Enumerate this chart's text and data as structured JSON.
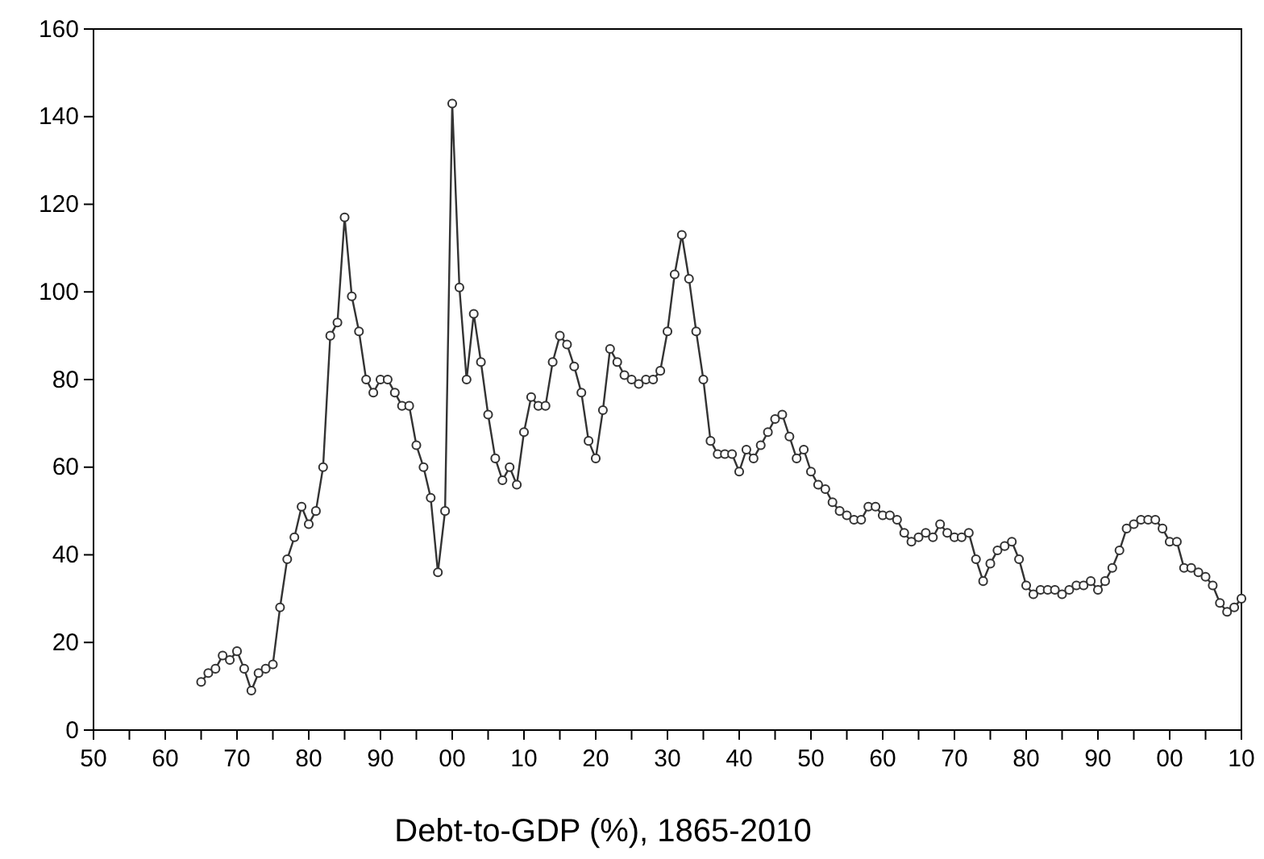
{
  "chart_data": {
    "type": "line",
    "xlabel": "Debt-to-GDP (%), 1865-2010",
    "x": [
      1865,
      1866,
      1867,
      1868,
      1869,
      1870,
      1871,
      1872,
      1873,
      1874,
      1875,
      1876,
      1877,
      1878,
      1879,
      1880,
      1881,
      1882,
      1883,
      1884,
      1885,
      1886,
      1887,
      1888,
      1889,
      1890,
      1891,
      1892,
      1893,
      1894,
      1895,
      1896,
      1897,
      1898,
      1899,
      1900,
      1901,
      1902,
      1903,
      1904,
      1905,
      1906,
      1907,
      1908,
      1909,
      1910,
      1911,
      1912,
      1913,
      1914,
      1915,
      1916,
      1917,
      1918,
      1919,
      1920,
      1921,
      1922,
      1923,
      1924,
      1925,
      1926,
      1927,
      1928,
      1929,
      1930,
      1931,
      1932,
      1933,
      1934,
      1935,
      1936,
      1937,
      1938,
      1939,
      1940,
      1941,
      1942,
      1943,
      1944,
      1945,
      1946,
      1947,
      1948,
      1949,
      1950,
      1951,
      1952,
      1953,
      1954,
      1955,
      1956,
      1957,
      1958,
      1959,
      1960,
      1961,
      1962,
      1963,
      1964,
      1965,
      1966,
      1967,
      1968,
      1969,
      1970,
      1971,
      1972,
      1973,
      1974,
      1975,
      1976,
      1977,
      1978,
      1979,
      1980,
      1981,
      1982,
      1983,
      1984,
      1985,
      1986,
      1987,
      1988,
      1989,
      1990,
      1991,
      1992,
      1993,
      1994,
      1995,
      1996,
      1997,
      1998,
      1999,
      2000,
      2001,
      2002,
      2003,
      2004,
      2005,
      2006,
      2007,
      2008,
      2009,
      2010
    ],
    "series": [
      {
        "color": "#333333",
        "values": [
          11,
          13,
          14,
          17,
          16,
          18,
          14,
          9,
          13,
          14,
          15,
          28,
          39,
          44,
          51,
          47,
          50,
          60,
          90,
          93,
          117,
          99,
          91,
          80,
          77,
          80,
          80,
          77,
          74,
          74,
          65,
          60,
          53,
          36,
          50,
          143,
          101,
          80,
          95,
          84,
          72,
          62,
          57,
          60,
          56,
          68,
          76,
          74,
          74,
          84,
          90,
          88,
          83,
          77,
          66,
          62,
          73,
          87,
          84,
          81,
          80,
          79,
          80,
          80,
          82,
          91,
          104,
          113,
          103,
          91,
          80,
          66,
          63,
          63,
          63,
          59,
          64,
          62,
          65,
          68,
          71,
          72,
          67,
          62,
          64,
          59,
          56,
          55,
          52,
          50,
          49,
          48,
          48,
          51,
          51,
          49,
          49,
          48,
          45,
          43,
          44,
          45,
          44,
          47,
          45,
          44,
          44,
          45,
          39,
          34,
          38,
          41,
          42,
          43,
          39,
          33,
          31,
          32,
          32,
          32,
          31,
          32,
          33,
          33,
          34,
          32,
          34,
          37,
          41,
          46,
          47,
          48,
          48,
          48,
          46,
          43,
          43,
          37,
          37,
          36,
          35,
          33,
          29,
          27,
          28,
          30
        ]
      }
    ],
    "xlim": [
      1850,
      2010
    ],
    "xticks": [
      {
        "value": 1850,
        "label": "50"
      },
      {
        "value": 1855,
        "label": null
      },
      {
        "value": 1860,
        "label": "60"
      },
      {
        "value": 1865,
        "label": null
      },
      {
        "value": 1870,
        "label": "70"
      },
      {
        "value": 1875,
        "label": null
      },
      {
        "value": 1880,
        "label": "80"
      },
      {
        "value": 1885,
        "label": null
      },
      {
        "value": 1890,
        "label": "90"
      },
      {
        "value": 1895,
        "label": null
      },
      {
        "value": 1900,
        "label": "00"
      },
      {
        "value": 1905,
        "label": null
      },
      {
        "value": 1910,
        "label": "10"
      },
      {
        "value": 1915,
        "label": null
      },
      {
        "value": 1920,
        "label": "20"
      },
      {
        "value": 1925,
        "label": null
      },
      {
        "value": 1930,
        "label": "30"
      },
      {
        "value": 1935,
        "label": null
      },
      {
        "value": 1940,
        "label": "40"
      },
      {
        "value": 1945,
        "label": null
      },
      {
        "value": 1950,
        "label": "50"
      },
      {
        "value": 1955,
        "label": null
      },
      {
        "value": 1960,
        "label": "60"
      },
      {
        "value": 1965,
        "label": null
      },
      {
        "value": 1970,
        "label": "70"
      },
      {
        "value": 1975,
        "label": null
      },
      {
        "value": 1980,
        "label": "80"
      },
      {
        "value": 1985,
        "label": null
      },
      {
        "value": 1990,
        "label": "90"
      },
      {
        "value": 1995,
        "label": null
      },
      {
        "value": 2000,
        "label": "00"
      },
      {
        "value": 2005,
        "label": null
      },
      {
        "value": 2010,
        "label": "10"
      }
    ],
    "ylim": [
      0,
      160
    ],
    "yticks": [
      0,
      20,
      40,
      60,
      80,
      100,
      120,
      140,
      160
    ],
    "grid": false,
    "marker": "circle",
    "line_style": "solid"
  }
}
